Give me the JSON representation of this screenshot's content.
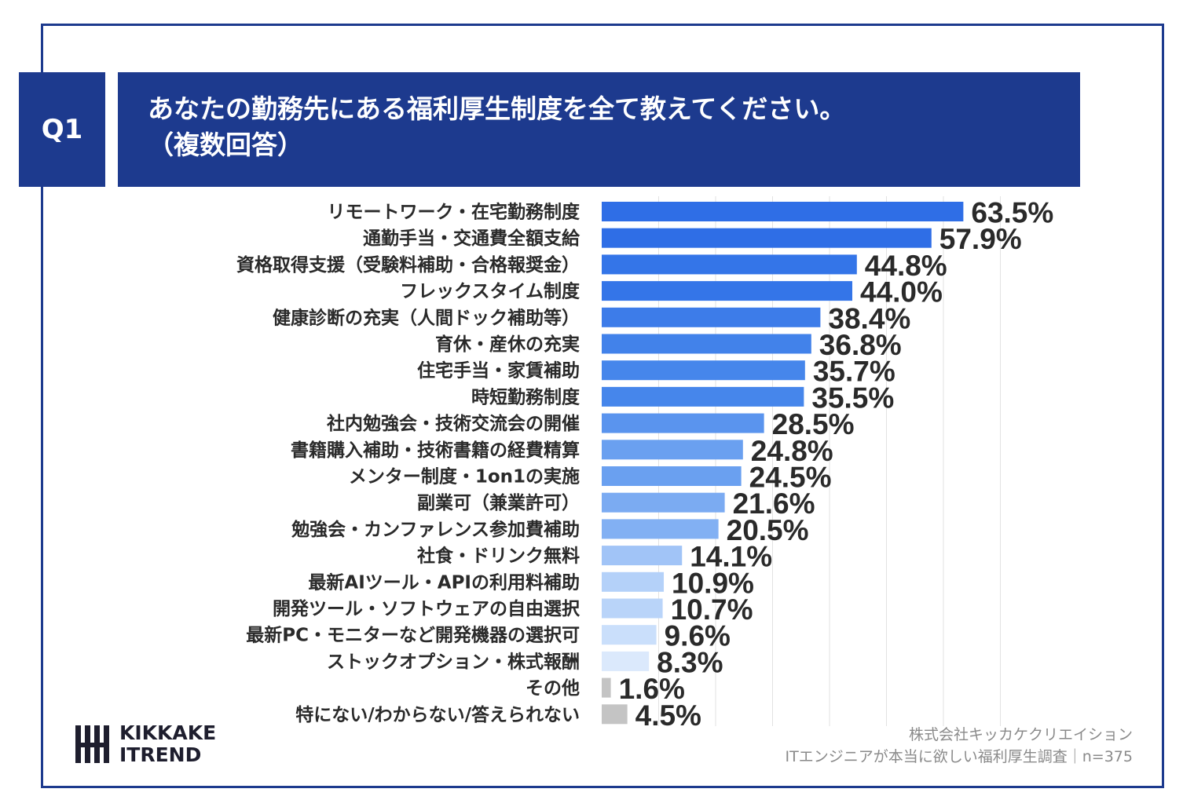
{
  "header": {
    "badge": "Q1",
    "title_line1": "あなたの勤務先にある福利厚生制度を全て教えてください。",
    "title_line2": "（複数回答）"
  },
  "chart_data": {
    "type": "bar",
    "orientation": "horizontal",
    "value_suffix": "%",
    "grid": true,
    "xlim": [
      0,
      70
    ],
    "categories": [
      "リモートワーク・在宅勤務制度",
      "通勤手当・交通費全額支給",
      "資格取得支援（受験料補助・合格報奨金）",
      "フレックスタイム制度",
      "健康診断の充実（人間ドック補助等）",
      "育休・産休の充実",
      "住宅手当・家賃補助",
      "時短勤務制度",
      "社内勉強会・技術交流会の開催",
      "書籍購入補助・技術書籍の経費精算",
      "メンター制度・1on1の実施",
      "副業可（兼業許可）",
      "勉強会・カンファレンス参加費補助",
      "社食・ドリンク無料",
      "最新AIツール・APIの利用料補助",
      "開発ツール・ソフトウェアの自由選択",
      "最新PC・モニターなど開発機器の選択可",
      "ストックオプション・株式報酬",
      "その他",
      "特にない/わからない/答えられない"
    ],
    "values": [
      63.5,
      57.9,
      44.8,
      44.0,
      38.4,
      36.8,
      35.7,
      35.5,
      28.5,
      24.8,
      24.5,
      21.6,
      20.5,
      14.1,
      10.9,
      10.7,
      9.6,
      8.3,
      1.6,
      4.5
    ],
    "labels": [
      "63.5%",
      "57.9%",
      "44.8%",
      "44.0%",
      "38.4%",
      "36.8%",
      "35.7%",
      "35.5%",
      "28.5%",
      "24.8%",
      "24.5%",
      "21.6%",
      "20.5%",
      "14.1%",
      "10.9%",
      "10.7%",
      "9.6%",
      "8.3%",
      "1.6%",
      "4.5%"
    ],
    "colors": [
      "#2f6ee6",
      "#2f6ee6",
      "#3475e8",
      "#3475e8",
      "#3d7ce9",
      "#4282ea",
      "#4686eb",
      "#4686eb",
      "#5a94ee",
      "#6aa0f0",
      "#6aa0f0",
      "#7babf2",
      "#82b0f3",
      "#a1c4f7",
      "#b4d1f9",
      "#b9d4f9",
      "#cadffb",
      "#dbe9fc",
      "#c4c4c4",
      "#c4c4c4"
    ]
  },
  "footer": {
    "source_line1": "株式会社キッカケクリエイション",
    "source_line2": "ITエンジニアが本当に欲しい福利厚生調査｜n=375",
    "logo_line1": "KIKKAKE",
    "logo_line2": "ITREND"
  },
  "colors": {
    "brand": "#1d3a8e",
    "text": "#2a2a2a",
    "grid": "#e2e2e2"
  }
}
